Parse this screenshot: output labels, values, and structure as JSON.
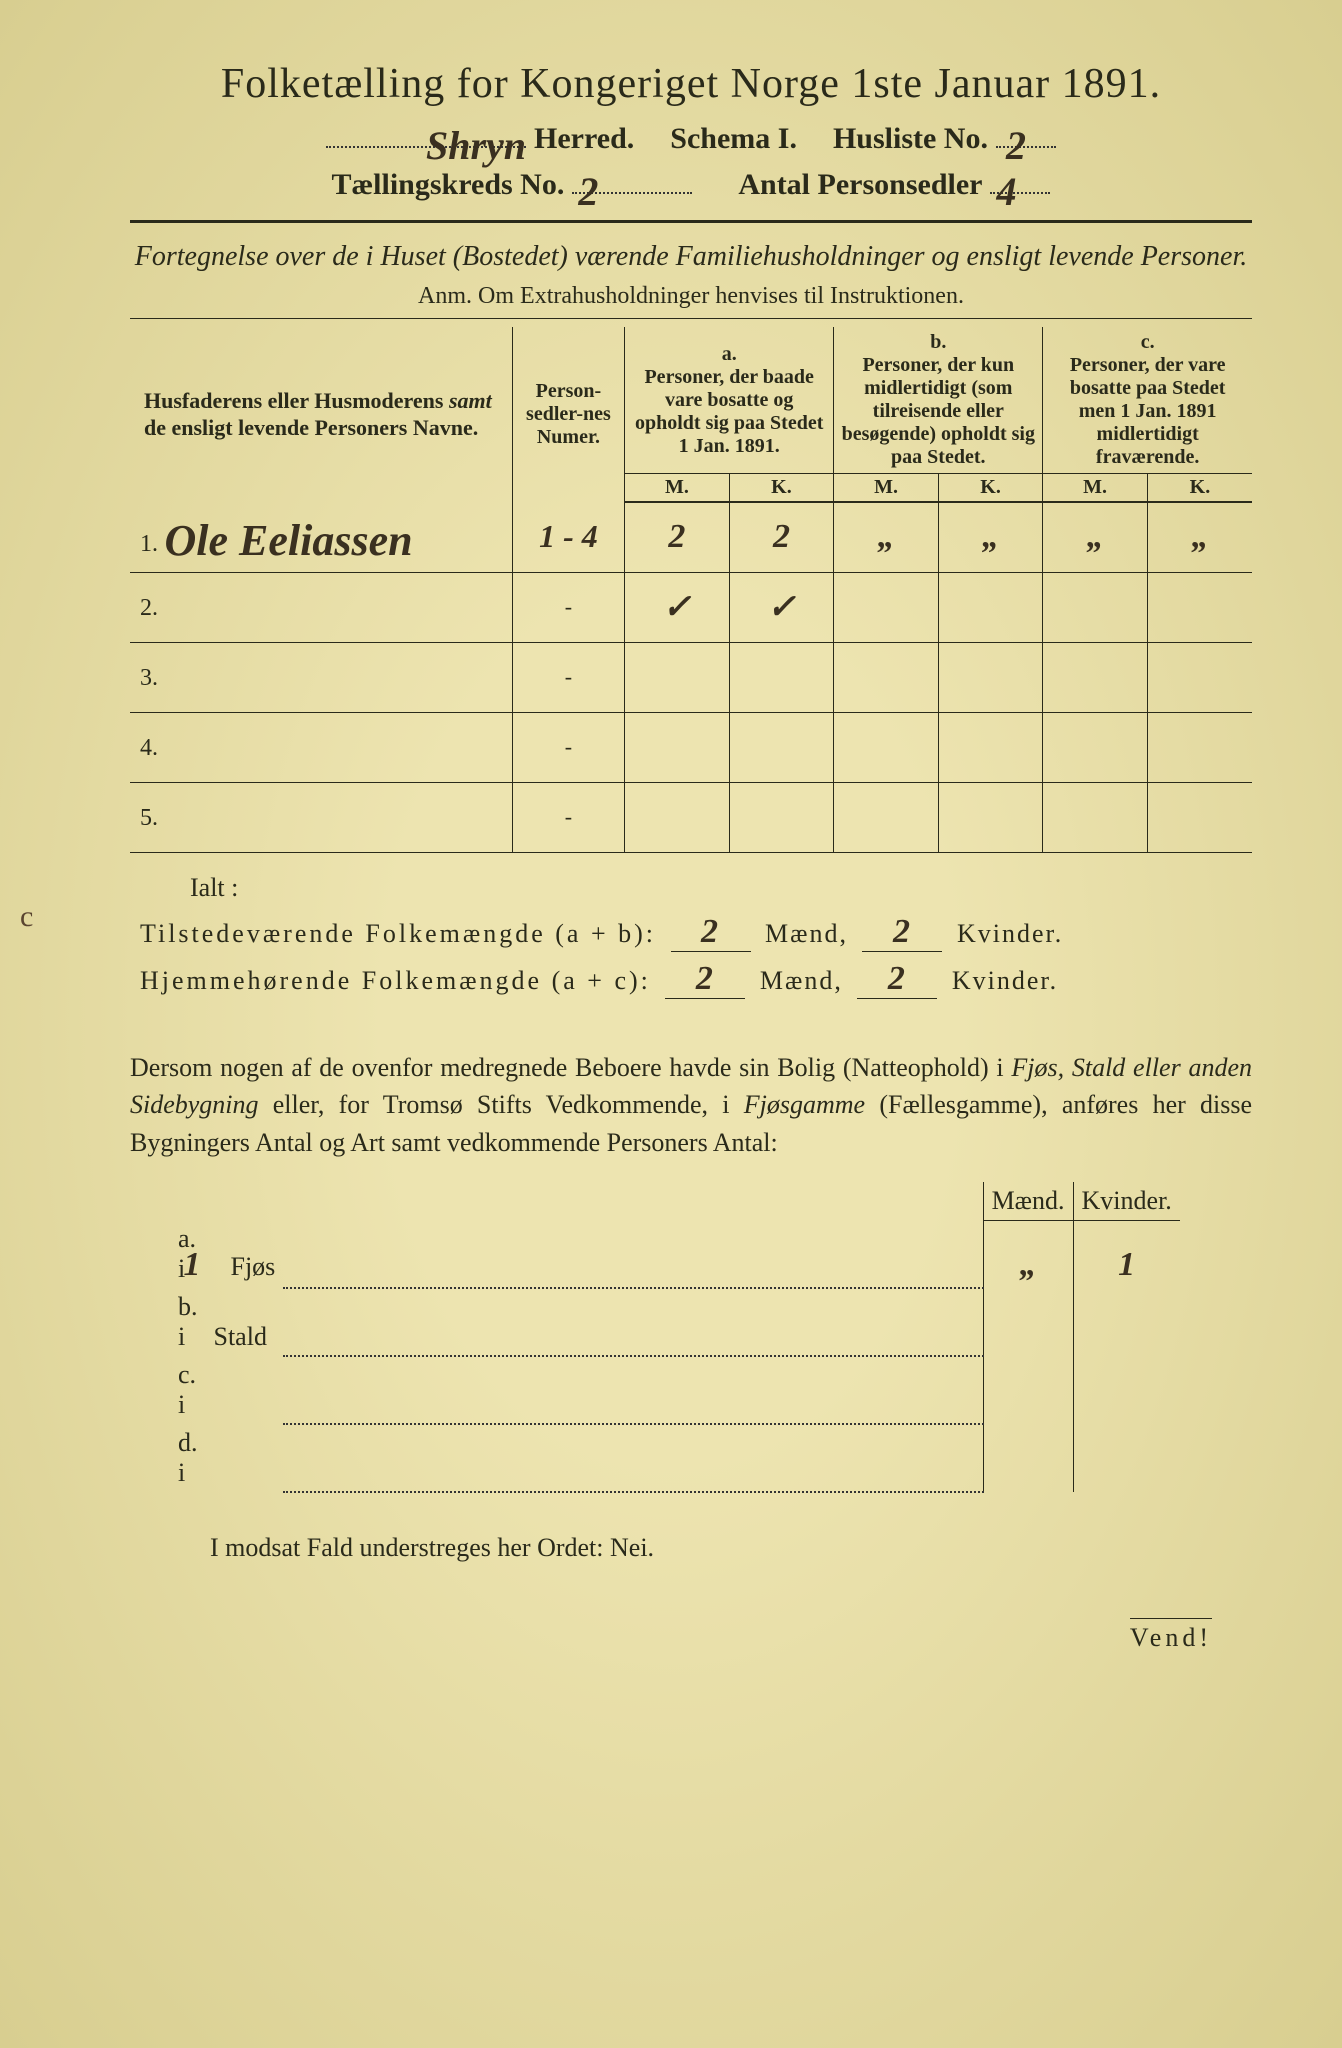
{
  "colors": {
    "paper": "#e8dfa8",
    "paper_center": "#ede4b0",
    "paper_edge": "#d8ce90",
    "ink": "#2a2a1a",
    "handwriting": "#3a3020"
  },
  "header": {
    "title": "Folketælling for Kongeriget Norge 1ste Januar 1891.",
    "herred_handwritten": "Shryn",
    "herred_label": "Herred.",
    "schema": "Schema I.",
    "husliste_label": "Husliste No.",
    "husliste_no": "2",
    "taellingskreds_label": "Tællingskreds No.",
    "taellingskreds_no": "2",
    "antal_label": "Antal Personsedler",
    "antal_value": "4"
  },
  "fortegnelse": {
    "line": "Fortegnelse over de i Huset (Bostedet) værende Familiehusholdninger og ensligt levende Personer.",
    "anm": "Anm. Om Extrahusholdninger henvises til Instruktionen."
  },
  "table": {
    "col_name": "Husfaderens eller Husmoderens samt de ensligt levende Personers Navne.",
    "col_num": "Person-sedler-nes Numer.",
    "col_a_label": "a.",
    "col_a_text": "Personer, der baade vare bosatte og opholdt sig paa Stedet 1 Jan. 1891.",
    "col_b_label": "b.",
    "col_b_text": "Personer, der kun midlertidigt (som tilreisende eller besøgende) opholdt sig paa Stedet.",
    "col_c_label": "c.",
    "col_c_text": "Personer, der vare bosatte paa Stedet men 1 Jan. 1891 midlertidigt fraværende.",
    "mk_m": "M.",
    "mk_k": "K.",
    "rows": [
      {
        "num": "1.",
        "name": "Ole Eeliassen",
        "personsedler": "1 - 4",
        "a_m": "2",
        "a_k": "2",
        "b_m": "„",
        "b_k": "„",
        "c_m": "„",
        "c_k": "„"
      },
      {
        "num": "2.",
        "name": "",
        "personsedler": "-",
        "a_m": "✓",
        "a_k": "✓",
        "b_m": "",
        "b_k": "",
        "c_m": "",
        "c_k": ""
      },
      {
        "num": "3.",
        "name": "",
        "personsedler": "-",
        "a_m": "",
        "a_k": "",
        "b_m": "",
        "b_k": "",
        "c_m": "",
        "c_k": ""
      },
      {
        "num": "4.",
        "name": "",
        "personsedler": "-",
        "a_m": "",
        "a_k": "",
        "b_m": "",
        "b_k": "",
        "c_m": "",
        "c_k": ""
      },
      {
        "num": "5.",
        "name": "",
        "personsedler": "-",
        "a_m": "",
        "a_k": "",
        "b_m": "",
        "b_k": "",
        "c_m": "",
        "c_k": ""
      }
    ]
  },
  "ialt": "Ialt :",
  "summary": {
    "line1_label": "Tilstedeværende Folkemængde (a + b):",
    "line1_m": "2",
    "line1_k": "2",
    "line2_label": "Hjemmehørende Folkemængde (a + c):",
    "line2_m": "2",
    "line2_k": "2",
    "maend": "Mænd,",
    "kvinder": "Kvinder."
  },
  "paragraph": "Dersom nogen af de ovenfor medregnede Beboere havde sin Bolig (Natteophold) i Fjøs, Stald eller anden Sidebygning eller, for Tromsø Stifts Vedkommende, i Fjøsgamme (Fællesgamme), anføres her disse Bygningers Antal og Art samt vedkommende Personers Antal:",
  "bottom_table": {
    "head_m": "Mænd.",
    "head_k": "Kvinder.",
    "rows": [
      {
        "label": "a.  i",
        "type": "Fjøs",
        "type_hand": "1",
        "m": "„",
        "k": "1"
      },
      {
        "label": "b.  i",
        "type": "Stald",
        "type_hand": "",
        "m": "",
        "k": ""
      },
      {
        "label": "c.  i",
        "type": "",
        "type_hand": "",
        "m": "",
        "k": ""
      },
      {
        "label": "d.  i",
        "type": "",
        "type_hand": "",
        "m": "",
        "k": ""
      }
    ]
  },
  "modsat": "I modsat Fald understreges her Ordet: Nei.",
  "vend": "Vend!",
  "margin_mark": "c"
}
